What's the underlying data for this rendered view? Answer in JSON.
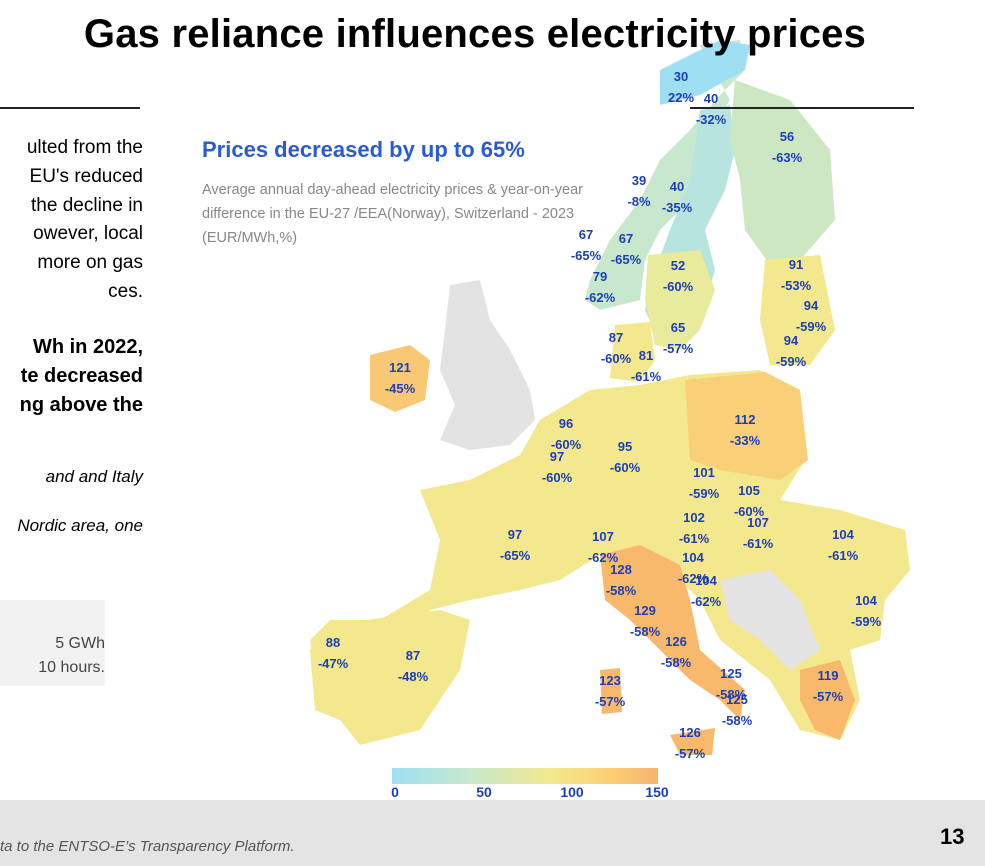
{
  "title": "Gas reliance influences electricity prices",
  "left_text": {
    "lines": [
      "ulted from the",
      "EU's reduced",
      "the decline in",
      "owever, local",
      "more on gas",
      "ces."
    ],
    "bold_lines": [
      "Wh in 2022,",
      "te decreased",
      "ng above the"
    ],
    "italic_1": "and and Italy",
    "italic_2": "Nordic area, one"
  },
  "note": {
    "line1": "5 GWh",
    "line2": "10 hours."
  },
  "map": {
    "headline": "Prices decreased by up to 65%",
    "subtitle": "Average annual day-ahead electricity prices & year-on-year difference in the EU-27 /EEA(Norway), Switzerland - 2023 (EUR/MWh,%)",
    "colors": {
      "low": "#9fdff3",
      "mid": "#f3e88e",
      "high": "#f7b36e",
      "na": "#e3e3e3",
      "label": "#1c3fb8"
    },
    "legend": {
      "ticks": [
        "0",
        "50",
        "100",
        "150"
      ]
    },
    "regions": [
      {
        "price": "30",
        "change": "22%"
      },
      {
        "price": "40",
        "change": "-32%"
      },
      {
        "price": "56",
        "change": "-63%"
      },
      {
        "price": "39",
        "change": "-8%"
      },
      {
        "price": "40",
        "change": "-35%"
      },
      {
        "price": "67",
        "change": "-65%"
      },
      {
        "price": "67",
        "change": "-65%"
      },
      {
        "price": "79",
        "change": "-62%"
      },
      {
        "price": "52",
        "change": "-60%"
      },
      {
        "price": "91",
        "change": "-53%"
      },
      {
        "price": "94",
        "change": "-59%"
      },
      {
        "price": "94",
        "change": "-59%"
      },
      {
        "price": "65",
        "change": "-57%"
      },
      {
        "price": "87",
        "change": "-60%"
      },
      {
        "price": "81",
        "change": "-61%"
      },
      {
        "price": "121",
        "change": "-45%"
      },
      {
        "price": "112",
        "change": "-33%"
      },
      {
        "price": "96",
        "change": "-60%"
      },
      {
        "price": "95",
        "change": "-60%"
      },
      {
        "price": "97",
        "change": "-60%"
      },
      {
        "price": "101",
        "change": "-59%"
      },
      {
        "price": "105",
        "change": "-60%"
      },
      {
        "price": "102",
        "change": "-61%"
      },
      {
        "price": "107",
        "change": "-61%"
      },
      {
        "price": "97",
        "change": "-65%"
      },
      {
        "price": "107",
        "change": "-62%"
      },
      {
        "price": "104",
        "change": "-61%"
      },
      {
        "price": "104",
        "change": "-62%"
      },
      {
        "price": "128",
        "change": "-58%"
      },
      {
        "price": "104",
        "change": "-62%"
      },
      {
        "price": "104",
        "change": "-59%"
      },
      {
        "price": "129",
        "change": "-58%"
      },
      {
        "price": "126",
        "change": "-58%"
      },
      {
        "price": "88",
        "change": "-47%"
      },
      {
        "price": "87",
        "change": "-48%"
      },
      {
        "price": "125",
        "change": "-58%"
      },
      {
        "price": "119",
        "change": "-57%"
      },
      {
        "price": "123",
        "change": "-57%"
      },
      {
        "price": "125",
        "change": "-58%"
      },
      {
        "price": "126",
        "change": "-57%"
      }
    ]
  },
  "footnote": "ta to the ENTSO-E’s Transparency Platform.",
  "page_number": "13"
}
